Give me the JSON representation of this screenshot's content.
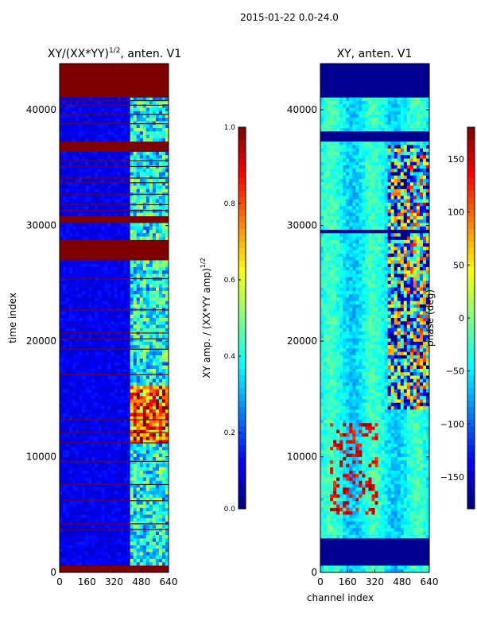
{
  "figure_title": "2015-01-22 0.0-24.0",
  "colors": {
    "jet": [
      "#00007f",
      "#0000ff",
      "#007fff",
      "#00ffff",
      "#7fff7f",
      "#ffff00",
      "#ff7f00",
      "#ff0000",
      "#7f0000"
    ]
  },
  "chart_data": [
    {
      "type": "heatmap",
      "panel": "left",
      "title_main": "XY/(XX*YY)",
      "title_sup": "1/2",
      "title_tail": ", anten. V1",
      "xlabel": "",
      "ylabel": "time index",
      "xlim": [
        0,
        640
      ],
      "ylim": [
        0,
        44000
      ],
      "xticks": [
        0,
        160,
        320,
        480,
        640
      ],
      "yticks": [
        0,
        10000,
        20000,
        30000,
        40000
      ],
      "colorbar": {
        "label_main": "XY amp. / (XX*YY amp)",
        "label_sup": "1/2",
        "range": [
          0.0,
          1.0
        ],
        "ticks": [
          "0.0",
          "0.2",
          "0.4",
          "0.6",
          "0.8",
          "1.0"
        ]
      },
      "saturated_time_bands": [
        [
          0,
          700
        ],
        [
          2800,
          3000
        ],
        [
          27000,
          28700
        ],
        [
          30100,
          30900
        ],
        [
          36400,
          37200
        ],
        [
          41200,
          44000
        ]
      ],
      "flag_lines": [
        3700,
        4200,
        6200,
        7600,
        9600,
        11200,
        12100,
        13200,
        17100,
        19300,
        20200,
        20700,
        22700,
        25400,
        31300,
        31800,
        32700,
        33700,
        34100,
        35100,
        35600,
        38800,
        39600,
        40400,
        40800
      ]
    },
    {
      "type": "heatmap",
      "panel": "right",
      "title_main": "XY, anten. V1",
      "xlabel": "channel index",
      "ylabel": "",
      "xlim": [
        0,
        640
      ],
      "ylim": [
        0,
        44000
      ],
      "xticks": [
        0,
        160,
        320,
        480,
        640
      ],
      "yticks": [
        0,
        10000,
        20000,
        30000,
        40000
      ],
      "colorbar": {
        "label_main": "phase (deg)",
        "range": [
          -180,
          180
        ],
        "ticks": [
          "150",
          "100",
          "50",
          "0",
          "−50",
          "−100",
          "−150"
        ],
        "tick_values": [
          150,
          100,
          50,
          0,
          -50,
          -100,
          -150
        ]
      },
      "blank_time_bands": [
        [
          700,
          2800
        ],
        [
          29200,
          29500
        ],
        [
          37200,
          38100
        ],
        [
          41200,
          44000
        ]
      ]
    }
  ]
}
